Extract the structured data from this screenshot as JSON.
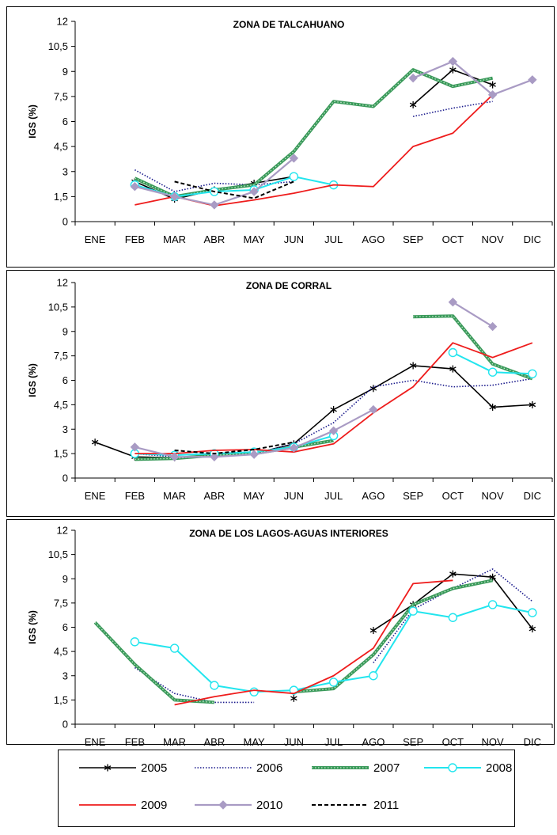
{
  "series_styles": {
    "2005": {
      "color": "#000000",
      "marker": "asterisk",
      "dash": "",
      "width": 1.6
    },
    "2006": {
      "color": "#1a1a8c",
      "marker": "none",
      "dash": "1.5,2",
      "width": 1.6
    },
    "2007": {
      "color": "#3a9a5a",
      "marker": "none",
      "dash": "",
      "width": 4,
      "dotted_overlay": true
    },
    "2008": {
      "color": "#22e5ee",
      "marker": "circle",
      "dash": "",
      "width": 2
    },
    "2009": {
      "color": "#ee1c1c",
      "marker": "none",
      "dash": "",
      "width": 1.8
    },
    "2010": {
      "color": "#a99bc4",
      "marker": "diamond",
      "dash": "",
      "width": 2.2
    },
    "2011": {
      "color": "#000000",
      "marker": "none",
      "dash": "5,3",
      "width": 2
    }
  },
  "chart_data": [
    {
      "type": "line",
      "title": "ZONA DE TALCAHUANO",
      "ylabel": "IGS (%)",
      "categories": [
        "ENE",
        "FEB",
        "MAR",
        "ABR",
        "MAY",
        "JUN",
        "JUL",
        "AGO",
        "SEP",
        "OCT",
        "NOV",
        "DIC"
      ],
      "ylim": [
        0,
        12
      ],
      "yticks": [
        "0",
        "1,5",
        "3",
        "4,5",
        "6",
        "7,5",
        "9",
        "10,5",
        "12"
      ],
      "series": [
        {
          "name": "2005",
          "values": [
            null,
            2.4,
            1.35,
            1.9,
            2.3,
            2.7,
            null,
            null,
            7.0,
            9.1,
            8.2,
            null
          ]
        },
        {
          "name": "2006",
          "values": [
            null,
            3.1,
            1.8,
            2.3,
            2.2,
            2.4,
            null,
            null,
            6.3,
            6.8,
            7.2,
            null
          ]
        },
        {
          "name": "2007",
          "values": [
            null,
            2.6,
            1.5,
            1.9,
            2.2,
            4.2,
            7.2,
            6.9,
            9.1,
            8.1,
            8.6,
            null
          ]
        },
        {
          "name": "2008",
          "values": [
            null,
            2.2,
            1.5,
            1.8,
            1.9,
            2.7,
            2.2,
            null,
            null,
            null,
            null,
            null
          ]
        },
        {
          "name": "2009",
          "values": [
            null,
            1.0,
            1.5,
            0.95,
            1.3,
            1.7,
            2.2,
            2.1,
            4.5,
            5.3,
            7.6,
            null
          ]
        },
        {
          "name": "2010",
          "values": [
            null,
            2.1,
            1.5,
            1.0,
            1.8,
            3.8,
            null,
            null,
            8.6,
            9.6,
            7.6,
            8.5
          ]
        },
        {
          "name": "2011",
          "values": [
            null,
            null,
            2.4,
            1.8,
            1.4,
            2.4,
            null,
            null,
            null,
            null,
            null,
            null
          ]
        }
      ]
    },
    {
      "type": "line",
      "title": "ZONA DE CORRAL",
      "ylabel": "IGS (%)",
      "categories": [
        "ENE",
        "FEB",
        "MAR",
        "ABR",
        "MAY",
        "JUN",
        "JUL",
        "AGO",
        "SEP",
        "OCT",
        "NOV",
        "DIC"
      ],
      "ylim": [
        0,
        12
      ],
      "yticks": [
        "0",
        "1,5",
        "3",
        "4,5",
        "6",
        "7,5",
        "9",
        "10,5",
        "12"
      ],
      "series": [
        {
          "name": "2005",
          "values": [
            2.2,
            1.3,
            1.25,
            1.35,
            1.5,
            2.1,
            4.2,
            5.5,
            6.9,
            6.7,
            4.35,
            4.5
          ]
        },
        {
          "name": "2006",
          "values": [
            null,
            1.5,
            1.3,
            1.3,
            1.5,
            2.1,
            3.4,
            5.6,
            6.0,
            5.6,
            5.7,
            6.1
          ]
        },
        {
          "name": "2007",
          "values": [
            null,
            1.15,
            1.2,
            1.4,
            1.5,
            1.9,
            2.3,
            null,
            9.9,
            9.95,
            7.0,
            6.1
          ]
        },
        {
          "name": "2008",
          "values": [
            null,
            1.5,
            1.4,
            1.5,
            1.6,
            1.9,
            2.6,
            null,
            null,
            7.7,
            6.5,
            6.4
          ]
        },
        {
          "name": "2009",
          "values": [
            null,
            1.5,
            1.5,
            1.7,
            1.75,
            1.6,
            2.1,
            4.0,
            5.6,
            8.3,
            7.4,
            8.3
          ]
        },
        {
          "name": "2010",
          "values": [
            null,
            1.9,
            1.3,
            1.3,
            1.45,
            1.85,
            2.9,
            4.2,
            null,
            10.8,
            9.3,
            null
          ]
        },
        {
          "name": "2011",
          "values": [
            null,
            null,
            1.7,
            1.5,
            1.75,
            2.2,
            null,
            null,
            null,
            null,
            null,
            null
          ]
        }
      ]
    },
    {
      "type": "line",
      "title": "ZONA DE LOS LAGOS-AGUAS  INTERIORES",
      "ylabel": "IGS (%)",
      "categories": [
        "ENE",
        "FEB",
        "MAR",
        "ABR",
        "MAY",
        "JUN",
        "JUL",
        "AGO",
        "SEP",
        "OCT",
        "NOV",
        "DIC"
      ],
      "ylim": [
        0,
        12
      ],
      "yticks": [
        "0",
        "1,5",
        "3",
        "4,5",
        "6",
        "7,5",
        "9",
        "10,5",
        "12"
      ],
      "series": [
        {
          "name": "2005",
          "values": [
            null,
            null,
            null,
            null,
            null,
            1.6,
            null,
            5.8,
            7.4,
            9.3,
            9.1,
            5.9
          ]
        },
        {
          "name": "2006",
          "values": [
            null,
            3.5,
            1.9,
            1.35,
            1.35,
            null,
            null,
            3.8,
            7.1,
            8.4,
            9.6,
            7.6
          ]
        },
        {
          "name": "2007",
          "values": [
            6.3,
            3.7,
            1.5,
            1.35,
            null,
            2.0,
            2.2,
            4.3,
            7.4,
            8.4,
            8.9,
            null
          ]
        },
        {
          "name": "2008",
          "values": [
            null,
            5.1,
            4.7,
            2.4,
            2.0,
            2.1,
            2.6,
            3.0,
            7.0,
            6.6,
            7.4,
            6.9
          ]
        },
        {
          "name": "2009",
          "values": [
            null,
            null,
            1.2,
            1.7,
            2.1,
            1.9,
            3.0,
            4.7,
            8.7,
            8.9,
            null,
            null
          ]
        },
        {
          "name": "2010",
          "values": [
            null,
            null,
            null,
            null,
            null,
            null,
            null,
            null,
            null,
            null,
            null,
            null
          ]
        },
        {
          "name": "2011",
          "values": [
            null,
            null,
            null,
            null,
            null,
            null,
            null,
            null,
            null,
            null,
            null,
            null
          ]
        }
      ]
    }
  ],
  "legend": [
    {
      "name": "2005"
    },
    {
      "name": "2006"
    },
    {
      "name": "2007"
    },
    {
      "name": "2008"
    },
    {
      "name": "2009"
    },
    {
      "name": "2010"
    },
    {
      "name": "2011"
    }
  ]
}
